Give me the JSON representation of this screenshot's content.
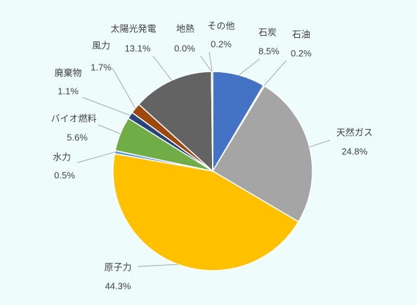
{
  "chart_data": {
    "type": "pie",
    "categories": [
      "石炭",
      "石油",
      "天然ガス",
      "原子力",
      "水力",
      "バイオ燃料",
      "廃棄物",
      "風力",
      "太陽光発電",
      "地熱",
      "その他"
    ],
    "values": [
      8.5,
      0.2,
      24.8,
      44.3,
      0.5,
      5.6,
      1.1,
      1.7,
      13.1,
      0,
      0.2
    ],
    "value_labels": [
      "8.5%",
      "0.2%",
      "24.8%",
      "44.3%",
      "0.5%",
      "5.6%",
      "1.1%",
      "1.7%",
      "13.1%",
      "0.0%",
      "0.2%"
    ],
    "colors": [
      "#4472c4",
      "#ed7d31",
      "#a5a5a5",
      "#ffc000",
      "#5b9bd5",
      "#70ad47",
      "#264478",
      "#9e480e",
      "#636363",
      "#997300",
      "#255e91"
    ]
  }
}
